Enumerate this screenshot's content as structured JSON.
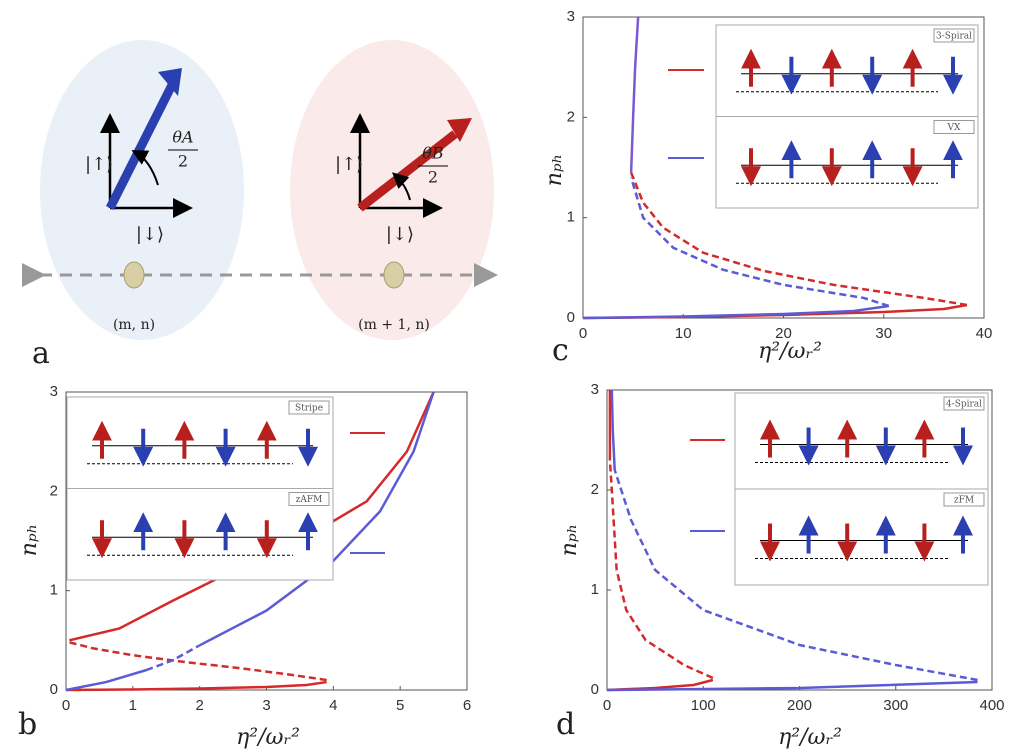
{
  "panel_a": {
    "label": "a",
    "ket_up": "|↑⟩",
    "ket_down": "|↓⟩",
    "theta_a": "θA",
    "theta_b": "θB",
    "den": "2",
    "site_1": "(m, n)",
    "site_2": "(m + 1, n)"
  },
  "chart_data": [
    {
      "type": "line",
      "label": "c",
      "x_label": "η²/ωᵣ²",
      "y_label": "nₚₕ",
      "xlim": [
        0,
        40
      ],
      "ylim": [
        0,
        3
      ],
      "xticks": [
        0,
        10,
        20,
        30,
        40
      ],
      "yticks": [
        0,
        1,
        2,
        3
      ],
      "insets": [
        "3-Spiral",
        "VX"
      ],
      "series": [
        {
          "color": "#d42a2a",
          "style": "solid",
          "x": [
            0,
            10,
            20,
            30,
            36,
            38.3
          ],
          "values": [
            0,
            0.01,
            0.03,
            0.06,
            0.09,
            0.13
          ]
        },
        {
          "color": "#d42a2a",
          "style": "dashed",
          "x": [
            38.3,
            34,
            25,
            18,
            12,
            8,
            6,
            4.8
          ],
          "values": [
            0.13,
            0.2,
            0.33,
            0.47,
            0.65,
            0.9,
            1.15,
            1.45
          ]
        },
        {
          "color": "#5b5bd6",
          "style": "solid",
          "x": [
            0,
            10,
            20,
            27,
            30.5
          ],
          "values": [
            0,
            0.015,
            0.04,
            0.07,
            0.12
          ]
        },
        {
          "color": "#5b5bd6",
          "style": "dashed",
          "x": [
            30.5,
            28,
            20,
            14,
            9,
            6,
            4.8
          ],
          "values": [
            0.12,
            0.2,
            0.33,
            0.48,
            0.7,
            1.0,
            1.4
          ]
        },
        {
          "color": "#7a5ad0",
          "style": "solid",
          "x": [
            4.8,
            5,
            5.2,
            5.5
          ],
          "values": [
            1.45,
            2,
            2.5,
            3
          ]
        }
      ]
    },
    {
      "type": "line",
      "label": "b",
      "x_label": "η²/ωᵣ²",
      "y_label": "nₚₕ",
      "xlim": [
        0,
        6
      ],
      "ylim": [
        0,
        3
      ],
      "xticks": [
        0,
        1,
        2,
        3,
        4,
        5,
        6
      ],
      "yticks": [
        0,
        1,
        2,
        3
      ],
      "insets": [
        "Stripe",
        "zAFM"
      ],
      "series": [
        {
          "color": "#d42a2a",
          "style": "solid",
          "x": [
            0,
            1,
            2,
            3,
            3.6,
            3.9
          ],
          "values": [
            0,
            0.005,
            0.015,
            0.03,
            0.05,
            0.08
          ]
        },
        {
          "color": "#d42a2a",
          "style": "dashed",
          "x": [
            3.9,
            3.4,
            2.6,
            1.8,
            1,
            0.4,
            0.05
          ],
          "values": [
            0.1,
            0.15,
            0.22,
            0.28,
            0.35,
            0.42,
            0.48
          ]
        },
        {
          "color": "#d42a2a",
          "style": "solid",
          "x": [
            0.05,
            0.8,
            1.6,
            2.5,
            3.5,
            4.5,
            5.1,
            5.5
          ],
          "values": [
            0.5,
            0.62,
            0.9,
            1.2,
            1.5,
            1.9,
            2.4,
            3
          ]
        },
        {
          "color": "#5b5bd6",
          "style": "solid",
          "x": [
            0,
            0.6,
            1.2
          ],
          "values": [
            0,
            0.08,
            0.2
          ]
        },
        {
          "color": "#5b5bd6",
          "style": "dashed",
          "x": [
            1.2,
            1.6,
            2
          ],
          "values": [
            0.2,
            0.3,
            0.45
          ]
        },
        {
          "color": "#5b5bd6",
          "style": "solid",
          "x": [
            2,
            3,
            4,
            4.7,
            5.2,
            5.5
          ],
          "values": [
            0.45,
            0.8,
            1.3,
            1.8,
            2.4,
            3
          ]
        }
      ]
    },
    {
      "type": "line",
      "label": "d",
      "x_label": "η²/ωᵣ²",
      "y_label": "nₚₕ",
      "xlim": [
        0,
        400
      ],
      "ylim": [
        0,
        3
      ],
      "xticks": [
        0,
        100,
        200,
        300,
        400
      ],
      "yticks": [
        0,
        1,
        2,
        3
      ],
      "insets": [
        "4-Spiral",
        "zFM"
      ],
      "series": [
        {
          "color": "#d42a2a",
          "style": "solid",
          "x": [
            0,
            50,
            90,
            110
          ],
          "values": [
            0,
            0.02,
            0.05,
            0.1
          ]
        },
        {
          "color": "#d42a2a",
          "style": "dashed",
          "x": [
            110,
            80,
            40,
            20,
            10,
            5,
            3
          ],
          "values": [
            0.12,
            0.25,
            0.5,
            0.8,
            1.2,
            2,
            2.3
          ]
        },
        {
          "color": "#d42a2a",
          "style": "solid",
          "x": [
            3,
            3
          ],
          "values": [
            2.3,
            3
          ]
        },
        {
          "color": "#5b5bd6",
          "style": "solid",
          "x": [
            0,
            200,
            385
          ],
          "values": [
            0,
            0.02,
            0.08
          ]
        },
        {
          "color": "#5b5bd6",
          "style": "dashed",
          "x": [
            385,
            300,
            200,
            100,
            50,
            25,
            8
          ],
          "values": [
            0.1,
            0.25,
            0.45,
            0.8,
            1.2,
            1.7,
            2.2
          ]
        },
        {
          "color": "#5b5bd6",
          "style": "solid",
          "x": [
            8,
            6,
            5
          ],
          "values": [
            2.2,
            2.6,
            3
          ]
        }
      ]
    }
  ]
}
